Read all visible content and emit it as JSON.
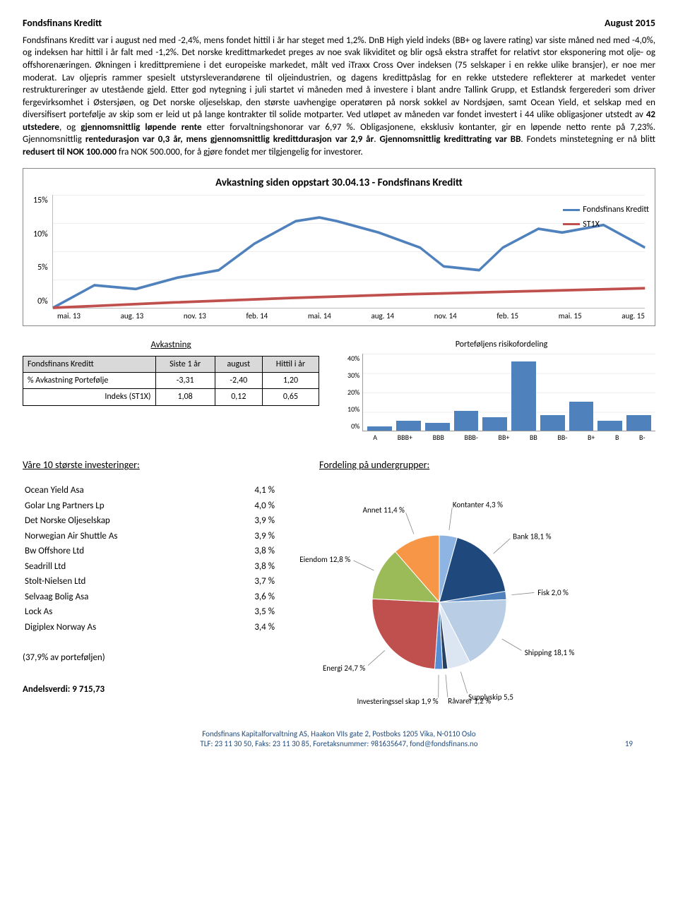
{
  "header": {
    "left": "Fondsfinans Kreditt",
    "right": "August 2015"
  },
  "body": "Fondsfinans Kreditt var i august ned med -2,4%, mens fondet hittil i år har steget med 1,2%. DnB High yield indeks (BB+ og lavere rating) var siste måned ned med -4,0%, og indeksen har hittil i år falt med -1,2%. Det norske kredittmarkedet preges av noe svak likviditet og blir også ekstra straffet for relativt stor eksponering mot olje- og offshorenæringen. Økningen i kredittpremiene i det europeiske markedet, målt ved iTraxx Cross Over indeksen (75 selskaper i en rekke ulike bransjer), er noe mer moderat. Lav oljepris rammer spesielt utstyrsleverandørene til oljeindustrien, og dagens kredittpåslag for en rekke utstedere reflekterer at markedet venter restruktureringer av utestående gjeld. Etter god nytegning i juli startet vi måneden med å investere i blant andre Tallink Grupp, et Estlandsk fergerederi som driver fergevirksomhet i Østersjøen, og Det norske oljeselskap, den største uavhengige operatøren på norsk sokkel av Nordsjøen, samt Ocean Yield, et selskap med en diversifisert portefølje av skip som er leid ut på lange kontrakter til solide motparter. Ved utløpet av måneden var fondet investert i 44 ulike obligasjoner utstedt av 42 utstedere, og gjennomsnittlig løpende rente etter forvaltningshonorar var 6,97 %. Obligasjonene, eksklusiv kontanter, gir en løpende netto rente på 7,23%. Gjennomsnittlig rentedurasjon var 0,3 år, mens gjennomsnittlig kredittdurasjon var 2,9 år. Gjennomsnittlig kredittrating var BB. Fondets minstetegning er nå blitt redusert til NOK 100.000 fra NOK 500.000, for å gjøre fondet mer tilgjengelig for investorer.",
  "line_chart": {
    "title": "Avkastning siden oppstart 30.04.13 - Fondsfinans Kreditt",
    "y_ticks": [
      "15%",
      "10%",
      "5%",
      "0%"
    ],
    "x_ticks": [
      "mai. 13",
      "aug. 13",
      "nov. 13",
      "feb. 14",
      "mai. 14",
      "aug. 14",
      "nov. 14",
      "feb. 15",
      "mai. 15",
      "aug. 15"
    ],
    "series": [
      {
        "name": "Fondsfinans Kreditt",
        "color": "#4f81bd",
        "points": [
          [
            0,
            0
          ],
          [
            7,
            3
          ],
          [
            14,
            2.5
          ],
          [
            21,
            4
          ],
          [
            28,
            5
          ],
          [
            34,
            8.5
          ],
          [
            41,
            11.5
          ],
          [
            45,
            12
          ],
          [
            48,
            11.5
          ],
          [
            55,
            10
          ],
          [
            62,
            8
          ],
          [
            66,
            5.5
          ],
          [
            72,
            5
          ],
          [
            76,
            8
          ],
          [
            82,
            10.5
          ],
          [
            86,
            10
          ],
          [
            93,
            11
          ],
          [
            100,
            8
          ]
        ]
      },
      {
        "name": "ST1X",
        "color": "#c0504d",
        "points": [
          [
            0,
            0
          ],
          [
            20,
            0.7
          ],
          [
            40,
            1.3
          ],
          [
            60,
            1.8
          ],
          [
            80,
            2.2
          ],
          [
            100,
            2.6
          ]
        ]
      }
    ],
    "ymax": 15
  },
  "returns": {
    "title": "Avkastning",
    "headers": [
      "Fondsfinans Kreditt",
      "Siste 1 år",
      "august",
      "Hittil i år"
    ],
    "rows": [
      [
        "% Avkastning   Portefølje",
        "-3,31",
        "-2,40",
        "1,20"
      ],
      [
        "Indeks (ST1X)",
        "1,08",
        "0,12",
        "0,65"
      ]
    ]
  },
  "bar_chart": {
    "title": "Porteføljens risikofordeling",
    "y_ticks": [
      "40%",
      "30%",
      "20%",
      "10%",
      "0%"
    ],
    "categories": [
      "A",
      "BBB+",
      "BBB",
      "BBB-",
      "BB+",
      "BB",
      "BB-",
      "B+",
      "B",
      "B-"
    ],
    "values": [
      2,
      5,
      4,
      10,
      7,
      36,
      8,
      15,
      5,
      8
    ],
    "ymax": 40,
    "bar_color": "#4f81bd"
  },
  "top_investments": {
    "title": "Våre 10 største investeringer:",
    "rows": [
      [
        "Ocean Yield Asa",
        "4,1 %"
      ],
      [
        "Golar Lng Partners Lp",
        "4,0 %"
      ],
      [
        "Det Norske Oljeselskap",
        "3,9 %"
      ],
      [
        "Norwegian Air Shuttle As",
        "3,9 %"
      ],
      [
        "Bw Offshore Ltd",
        "3,8 %"
      ],
      [
        "Seadrill Ltd",
        "3,8 %"
      ],
      [
        "Stolt-Nielsen Ltd",
        "3,7 %"
      ],
      [
        "Selvaag Bolig Asa",
        "3,6 %"
      ],
      [
        "Lock As",
        "3,5 %"
      ],
      [
        "Digiplex Norway As",
        "3,4 %"
      ]
    ],
    "note": "(37,9% av porteføljen)"
  },
  "pie": {
    "title": "Fordeling på undergrupper:",
    "slices": [
      {
        "label": "Kontanter 4,3 %",
        "value": 4.3,
        "color": "#8eb4e3"
      },
      {
        "label": "Bank 18,1 %",
        "value": 18.1,
        "color": "#1f497d"
      },
      {
        "label": "Fisk 2,0 %",
        "value": 2.0,
        "color": "#4f81bd"
      },
      {
        "label": "Shipping 18,1 %",
        "value": 18.1,
        "color": "#b9cde5"
      },
      {
        "label": "Supplyskip 5,5",
        "value": 5.5,
        "color": "#dce6f2"
      },
      {
        "label": "Råvarer 1,2 %",
        "value": 1.2,
        "color": "#254061"
      },
      {
        "label": "Investeringssel skap 1,9 %",
        "value": 1.9,
        "color": "#558ed5"
      },
      {
        "label": "Energi 24,7 %",
        "value": 24.7,
        "color": "#c0504d"
      },
      {
        "label": "Eiendom 12,8 %",
        "value": 12.8,
        "color": "#9bbb59"
      },
      {
        "label": "Annet 11,4 %",
        "value": 11.4,
        "color": "#f79646"
      }
    ]
  },
  "andel": "Andelsverdi: 9 715,73",
  "footer": {
    "line1": "Fondsfinans Kapitalforvaltning AS, Haakon VIIs gate 2, Postboks 1205 Vika, N-0110 Oslo",
    "line2": "TLF: 23 11 30 50, Faks: 23 11 30 85, Foretaksnummer: 981635647, fond@fondsfinans.no",
    "page": "19"
  }
}
